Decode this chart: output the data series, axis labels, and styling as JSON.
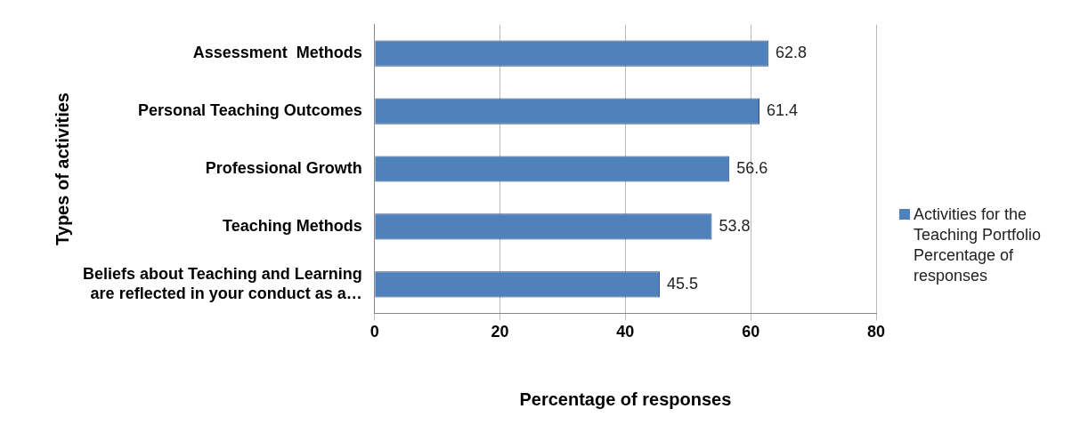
{
  "chart_data": {
    "type": "bar",
    "orientation": "horizontal",
    "xlabel": "Percentage of responses",
    "ylabel": "Types of activities",
    "categories": [
      "Assessment  Methods",
      "Personal Teaching Outcomes",
      "Professional Growth",
      "Teaching Methods",
      "Beliefs about Teaching and Learning are reflected in your conduct as a…"
    ],
    "series": [
      {
        "name": "Activities for the Teaching Portfolio Percentage of responses",
        "color": "#4f81bd",
        "values": [
          62.8,
          61.4,
          56.6,
          53.8,
          45.5
        ]
      }
    ],
    "xlim": [
      0,
      80
    ],
    "xticks": [
      0,
      20,
      40,
      60,
      80
    ],
    "grid": "x",
    "legend": "right",
    "data_labels": true
  }
}
